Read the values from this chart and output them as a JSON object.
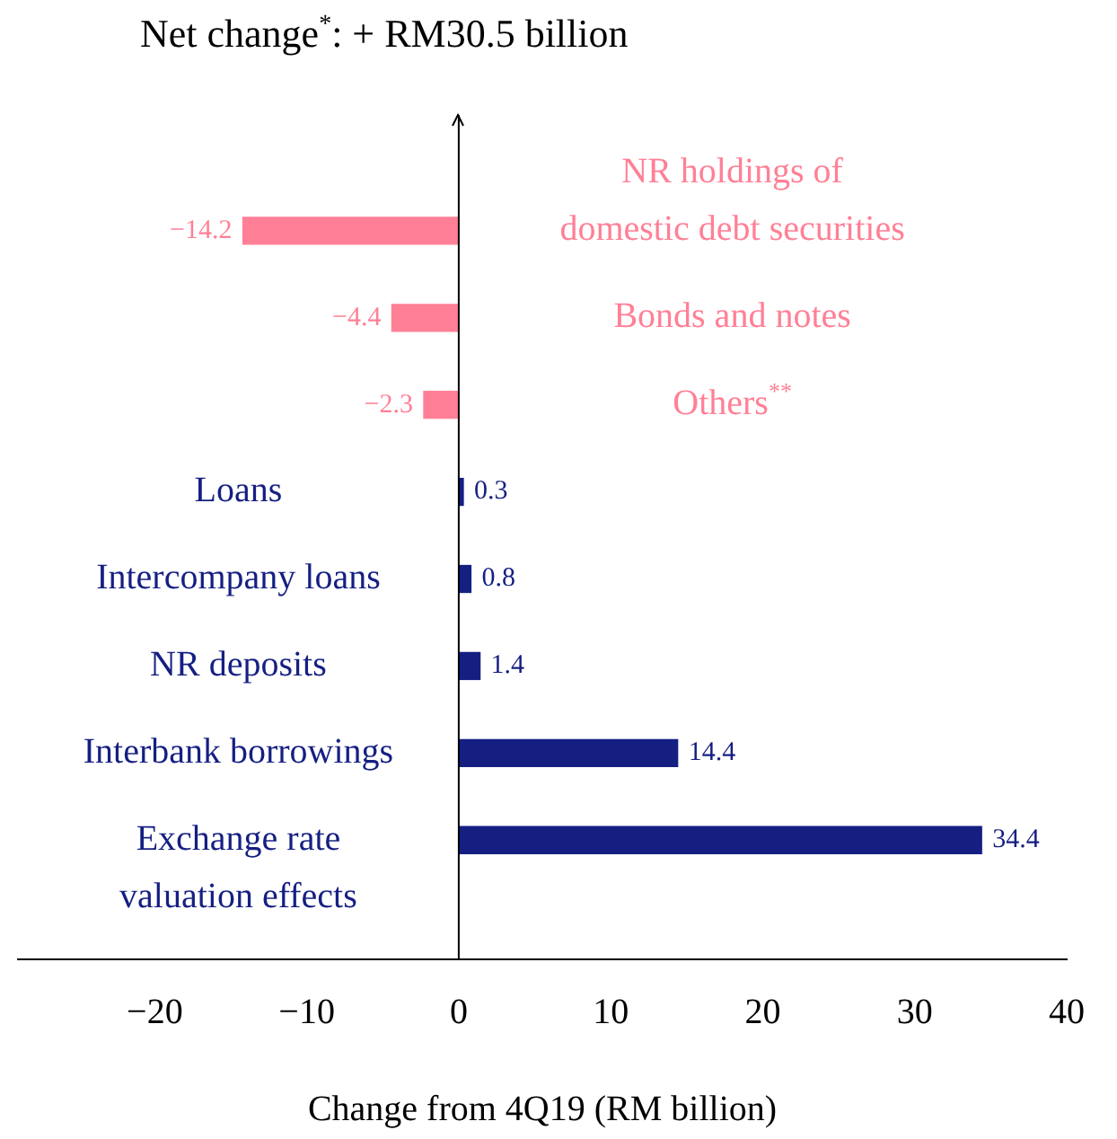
{
  "chart_data": {
    "type": "bar",
    "orientation": "horizontal",
    "title": "Net change$^{*}$: + RM30.5 billion",
    "xlabel": "Change from 4Q19 (RM billion)",
    "categories": [
      "NR holdings of domestic debt securities",
      "Bonds and notes",
      "Others$^{**}$",
      "Loans",
      "Intercompany loans",
      "NR deposits",
      "Interbank borrowings",
      "Exchange rate valuation effects"
    ],
    "values": [
      -14.2,
      -4.4,
      -2.3,
      0.3,
      0.8,
      1.4,
      14.4,
      34.4
    ],
    "colors": [
      "#ff8096",
      "#ff8096",
      "#ff8096",
      "#151f82",
      "#151f82",
      "#151f82",
      "#151f82",
      "#151f82"
    ],
    "xlim": [
      -29,
      40
    ],
    "xticks": [
      -20,
      -10,
      0,
      10,
      20,
      30,
      40
    ],
    "data_labels": true,
    "grid": false,
    "legend": false
  }
}
